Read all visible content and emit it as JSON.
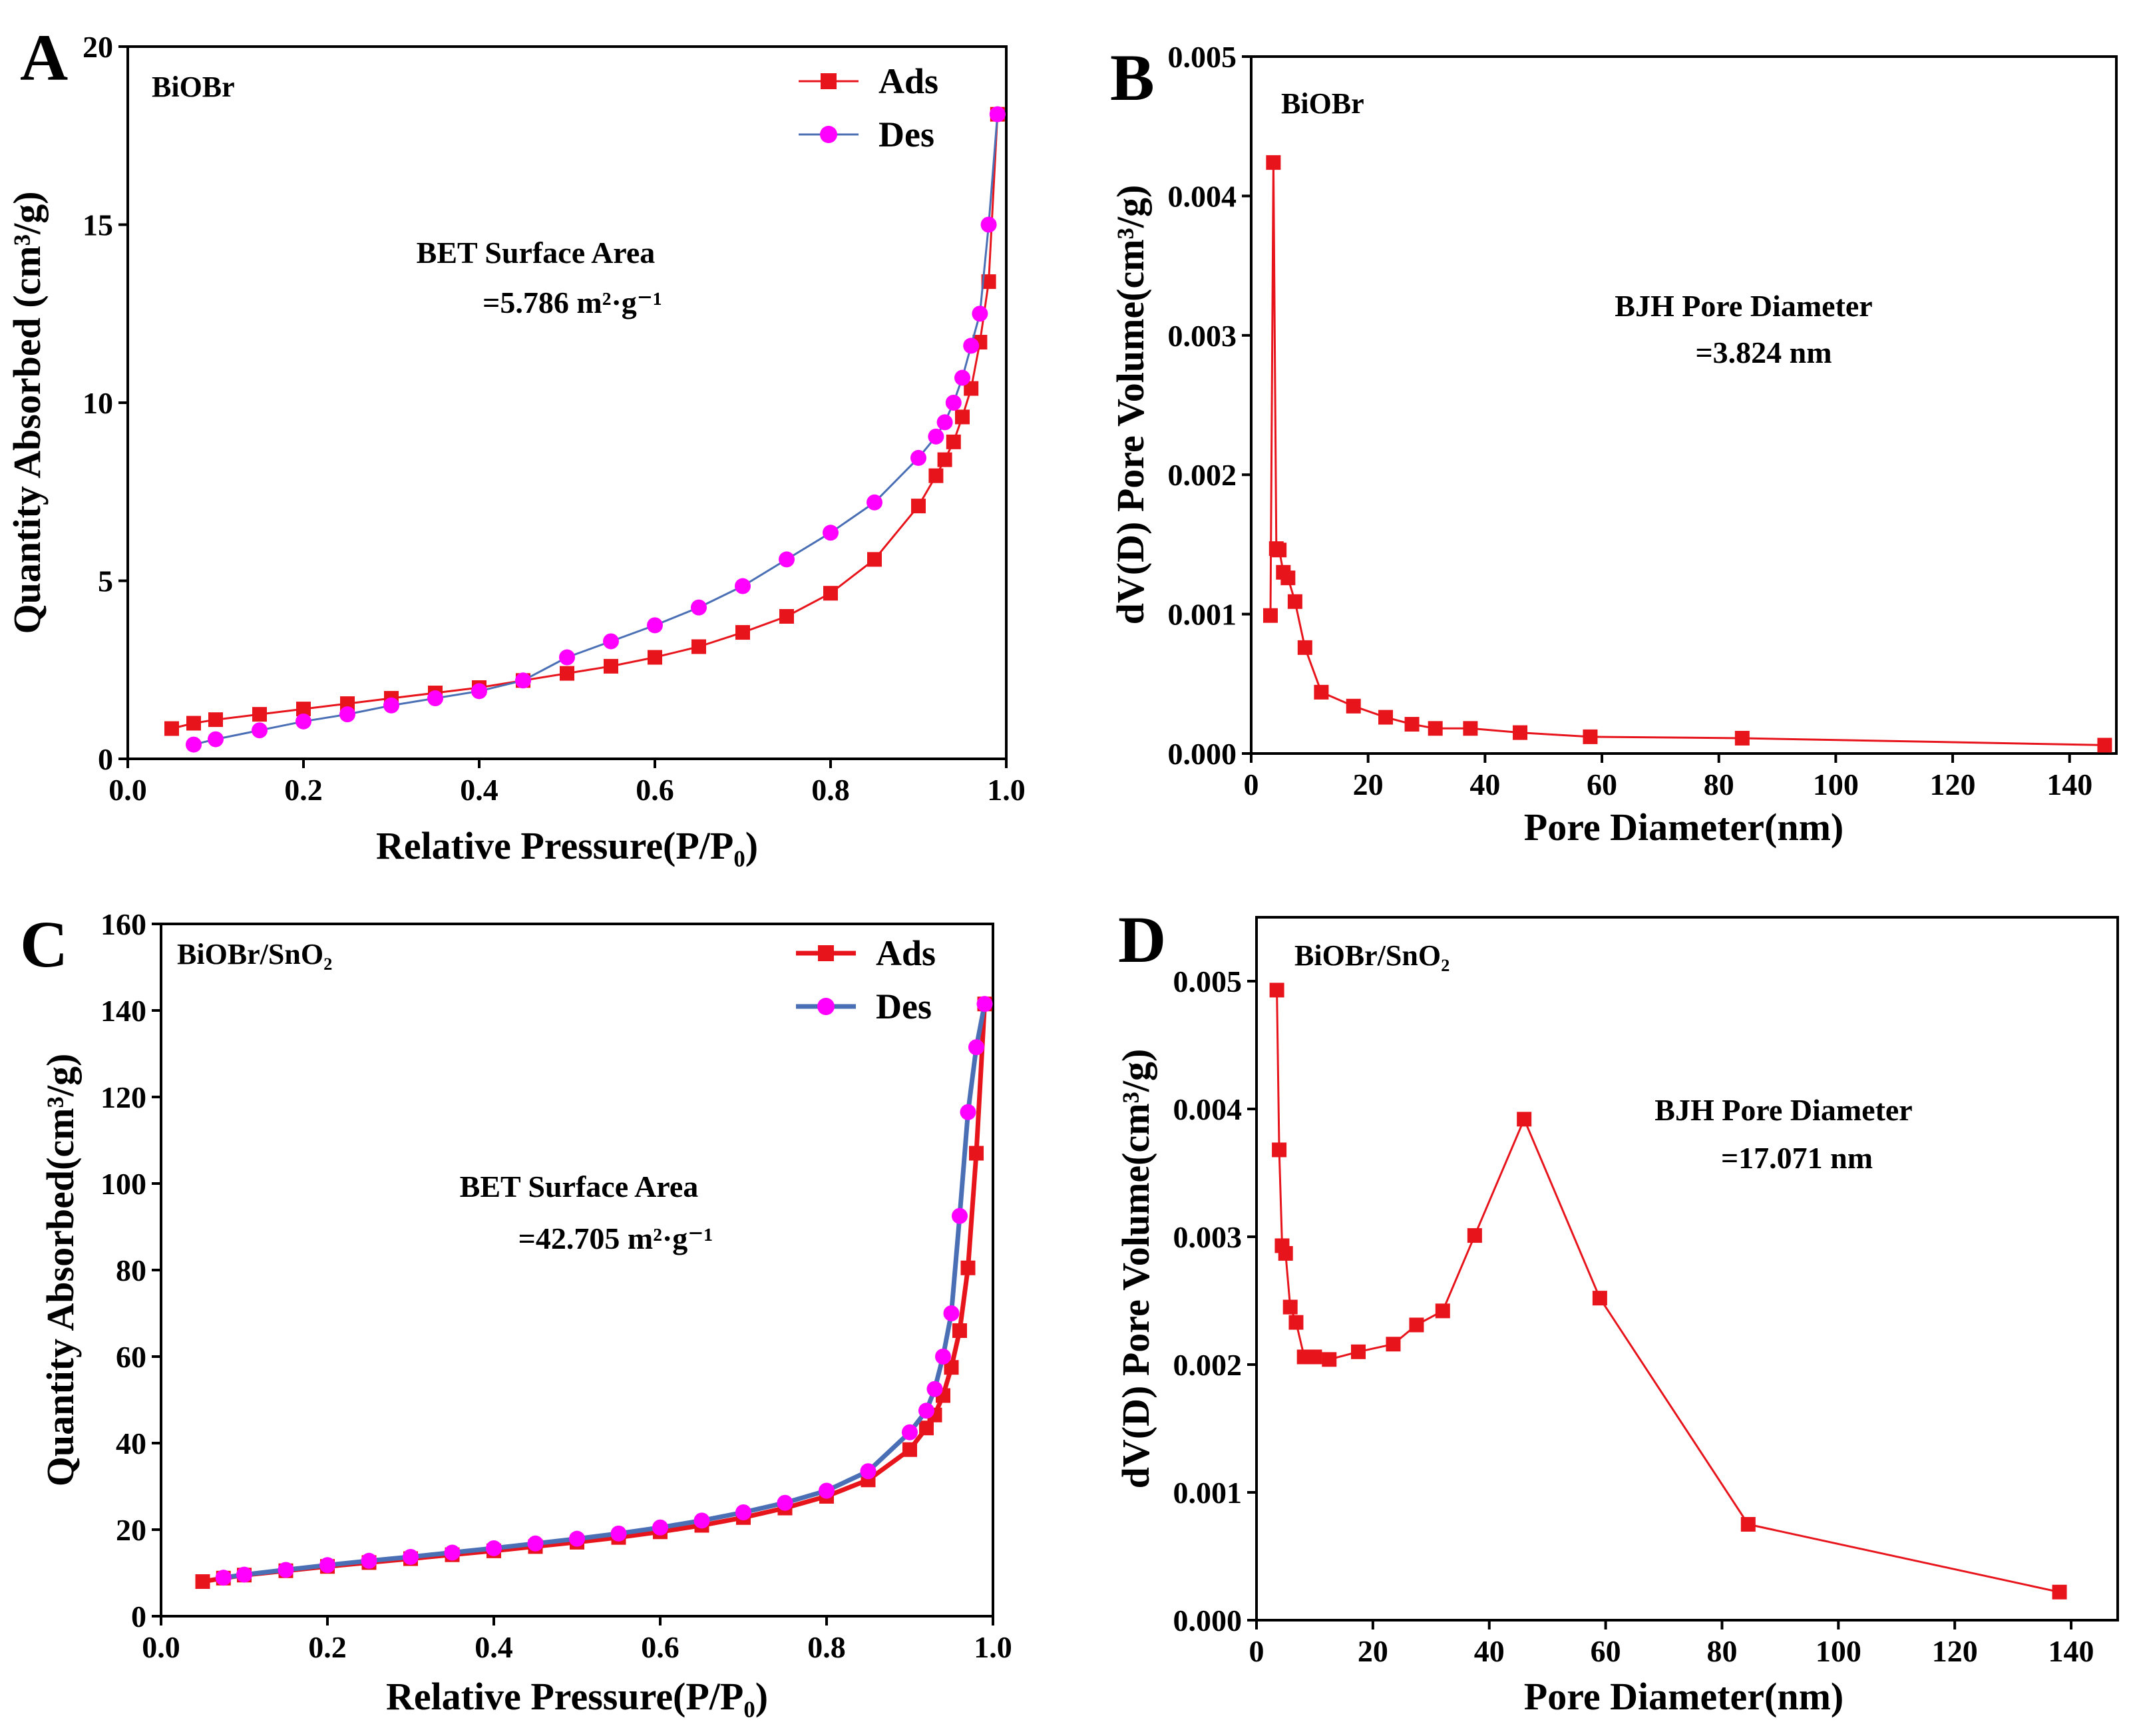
{
  "chart_data": [
    {
      "panel": "A",
      "type": "line",
      "sample_label": "BiOBr",
      "annotation_line1": "BET Surface Area",
      "annotation_line2": "=5.786 m²·g⁻¹",
      "xlabel": "Relative Pressure(P/P₀)",
      "ylabel": "Quantity Absorbed (cm³/g)",
      "xlim": [
        0,
        1.0
      ],
      "ylim": [
        0,
        20
      ],
      "xticks": [
        "0.0",
        "0.2",
        "0.4",
        "0.6",
        "0.8",
        "1.0"
      ],
      "yticks": [
        "0",
        "5",
        "10",
        "15",
        "20"
      ],
      "legend": [
        "Ads",
        "Des"
      ],
      "series": [
        {
          "name": "Ads",
          "color": "#e8141b",
          "marker": "square",
          "points": [
            [
              0.05,
              0.85
            ],
            [
              0.075,
              1.0
            ],
            [
              0.1,
              1.1
            ],
            [
              0.15,
              1.25
            ],
            [
              0.2,
              1.4
            ],
            [
              0.25,
              1.55
            ],
            [
              0.3,
              1.7
            ],
            [
              0.35,
              1.85
            ],
            [
              0.4,
              2.0
            ],
            [
              0.45,
              2.2
            ],
            [
              0.5,
              2.4
            ],
            [
              0.55,
              2.6
            ],
            [
              0.6,
              2.85
            ],
            [
              0.65,
              3.15
            ],
            [
              0.7,
              3.55
            ],
            [
              0.75,
              4.0
            ],
            [
              0.8,
              4.65
            ],
            [
              0.85,
              5.6
            ],
            [
              0.9,
              7.1
            ],
            [
              0.92,
              7.95
            ],
            [
              0.93,
              8.4
            ],
            [
              0.94,
              8.9
            ],
            [
              0.95,
              9.6
            ],
            [
              0.96,
              10.4
            ],
            [
              0.97,
              11.7
            ],
            [
              0.98,
              13.4
            ],
            [
              0.99,
              18.1
            ]
          ]
        },
        {
          "name": "Des",
          "color": "#ff00ff",
          "line_color": "#4a6fb5",
          "marker": "circle",
          "points": [
            [
              0.99,
              18.1
            ],
            [
              0.98,
              15.0
            ],
            [
              0.97,
              12.5
            ],
            [
              0.96,
              11.6
            ],
            [
              0.95,
              10.7
            ],
            [
              0.94,
              10.0
            ],
            [
              0.93,
              9.45
            ],
            [
              0.92,
              9.05
            ],
            [
              0.9,
              8.45
            ],
            [
              0.85,
              7.2
            ],
            [
              0.8,
              6.35
            ],
            [
              0.75,
              5.6
            ],
            [
              0.7,
              4.85
            ],
            [
              0.65,
              4.25
            ],
            [
              0.6,
              3.75
            ],
            [
              0.55,
              3.3
            ],
            [
              0.5,
              2.85
            ],
            [
              0.45,
              2.2
            ],
            [
              0.4,
              1.9
            ],
            [
              0.35,
              1.7
            ],
            [
              0.3,
              1.5
            ],
            [
              0.25,
              1.25
            ],
            [
              0.2,
              1.05
            ],
            [
              0.15,
              0.8
            ],
            [
              0.1,
              0.55
            ],
            [
              0.075,
              0.4
            ]
          ]
        }
      ]
    },
    {
      "panel": "B",
      "type": "line",
      "sample_label": "BiOBr",
      "annotation_line1": "BJH Pore Diameter",
      "annotation_line2": "=3.824 nm",
      "xlabel": "Pore Diameter(nm)",
      "ylabel": "dV(D) Pore Volume(cm³/g)",
      "xlim": [
        0,
        148
      ],
      "ylim": [
        0,
        0.005
      ],
      "xticks": [
        "0",
        "20",
        "40",
        "60",
        "80",
        "100",
        "120",
        "140"
      ],
      "yticks": [
        "0.000",
        "0.001",
        "0.002",
        "0.003",
        "0.004",
        "0.005"
      ],
      "series": [
        {
          "name": "BJH",
          "color": "#e8141b",
          "marker": "square",
          "points": [
            [
              3.3,
              0.00099
            ],
            [
              3.8,
              0.00424
            ],
            [
              4.3,
              0.00147
            ],
            [
              4.8,
              0.00146
            ],
            [
              5.5,
              0.0013
            ],
            [
              6.3,
              0.00126
            ],
            [
              7.5,
              0.00109
            ],
            [
              9.2,
              0.00076
            ],
            [
              12.0,
              0.00044
            ],
            [
              17.5,
              0.00034
            ],
            [
              23.0,
              0.00026
            ],
            [
              27.5,
              0.00021
            ],
            [
              31.5,
              0.00018
            ],
            [
              37.5,
              0.00018
            ],
            [
              46.0,
              0.00015
            ],
            [
              58.0,
              0.00012
            ],
            [
              84.0,
              0.00011
            ],
            [
              146.0,
              6e-05
            ]
          ]
        }
      ]
    },
    {
      "panel": "C",
      "type": "line",
      "sample_label": "BiOBr/SnO₂",
      "annotation_line1": "BET Surface Area",
      "annotation_line2": "=42.705 m²·g⁻¹",
      "xlabel": "Relative Pressure(P/P₀)",
      "ylabel": "Quantity Absorbed(cm³/g)",
      "xlim": [
        0,
        1.0
      ],
      "ylim": [
        0,
        160
      ],
      "xticks": [
        "0.0",
        "0.2",
        "0.4",
        "0.6",
        "0.8",
        "1.0"
      ],
      "yticks": [
        "0",
        "20",
        "40",
        "60",
        "80",
        "100",
        "120",
        "140",
        "160"
      ],
      "legend": [
        "Ads",
        "Des"
      ],
      "series": [
        {
          "name": "Ads",
          "color": "#e8141b",
          "marker": "square",
          "points": [
            [
              0.05,
              8.0
            ],
            [
              0.075,
              8.8
            ],
            [
              0.1,
              9.5
            ],
            [
              0.15,
              10.5
            ],
            [
              0.2,
              11.5
            ],
            [
              0.25,
              12.4
            ],
            [
              0.3,
              13.3
            ],
            [
              0.35,
              14.2
            ],
            [
              0.4,
              15.1
            ],
            [
              0.45,
              16.1
            ],
            [
              0.5,
              17.1
            ],
            [
              0.55,
              18.2
            ],
            [
              0.6,
              19.5
            ],
            [
              0.65,
              21.0
            ],
            [
              0.7,
              22.8
            ],
            [
              0.75,
              25.0
            ],
            [
              0.8,
              27.7
            ],
            [
              0.85,
              31.5
            ],
            [
              0.9,
              38.5
            ],
            [
              0.92,
              43.5
            ],
            [
              0.93,
              46.5
            ],
            [
              0.94,
              51.0
            ],
            [
              0.95,
              57.5
            ],
            [
              0.96,
              66.0
            ],
            [
              0.97,
              80.5
            ],
            [
              0.98,
              107.0
            ],
            [
              0.99,
              141.5
            ]
          ]
        },
        {
          "name": "Des",
          "color": "#ff00ff",
          "line_color": "#4a6fb5",
          "marker": "circle",
          "points": [
            [
              0.99,
              141.5
            ],
            [
              0.98,
              131.5
            ],
            [
              0.97,
              116.5
            ],
            [
              0.96,
              92.5
            ],
            [
              0.95,
              70.0
            ],
            [
              0.94,
              60.0
            ],
            [
              0.93,
              52.5
            ],
            [
              0.92,
              47.5
            ],
            [
              0.9,
              42.5
            ],
            [
              0.85,
              33.5
            ],
            [
              0.8,
              29.0
            ],
            [
              0.75,
              26.2
            ],
            [
              0.7,
              24.0
            ],
            [
              0.65,
              22.1
            ],
            [
              0.6,
              20.5
            ],
            [
              0.55,
              19.1
            ],
            [
              0.5,
              17.9
            ],
            [
              0.45,
              16.8
            ],
            [
              0.4,
              15.7
            ],
            [
              0.35,
              14.7
            ],
            [
              0.3,
              13.7
            ],
            [
              0.25,
              12.8
            ],
            [
              0.2,
              11.8
            ],
            [
              0.15,
              10.7
            ],
            [
              0.1,
              9.6
            ],
            [
              0.075,
              8.9
            ]
          ]
        }
      ]
    },
    {
      "panel": "D",
      "type": "line",
      "sample_label": "BiOBr/SnO₂",
      "annotation_line1": "BJH Pore Diameter",
      "annotation_line2": "=17.071 nm",
      "xlabel": "Pore Diameter(nm)",
      "ylabel": "dV(D) Pore Volume(cm³/g)",
      "xlim": [
        0,
        148
      ],
      "ylim": [
        0,
        0.0055
      ],
      "xticks": [
        "0",
        "20",
        "40",
        "60",
        "80",
        "100",
        "120",
        "140"
      ],
      "yticks": [
        "0.000",
        "0.001",
        "0.002",
        "0.003",
        "0.004",
        "0.005"
      ],
      "series": [
        {
          "name": "BJH",
          "color": "#e8141b",
          "marker": "square",
          "points": [
            [
              3.5,
              0.00493
            ],
            [
              3.9,
              0.00368
            ],
            [
              4.4,
              0.00293
            ],
            [
              5.0,
              0.00287
            ],
            [
              5.8,
              0.00245
            ],
            [
              6.8,
              0.00233
            ],
            [
              8.2,
              0.00206
            ],
            [
              10.0,
              0.00206
            ],
            [
              12.5,
              0.00204
            ],
            [
              17.5,
              0.0021
            ],
            [
              23.5,
              0.00216
            ],
            [
              27.5,
              0.00231
            ],
            [
              32.0,
              0.00242
            ],
            [
              37.5,
              0.00301
            ],
            [
              46.0,
              0.00392
            ],
            [
              59.0,
              0.00252
            ],
            [
              84.5,
              0.00075
            ],
            [
              138.0,
              0.00022
            ]
          ]
        }
      ]
    }
  ]
}
